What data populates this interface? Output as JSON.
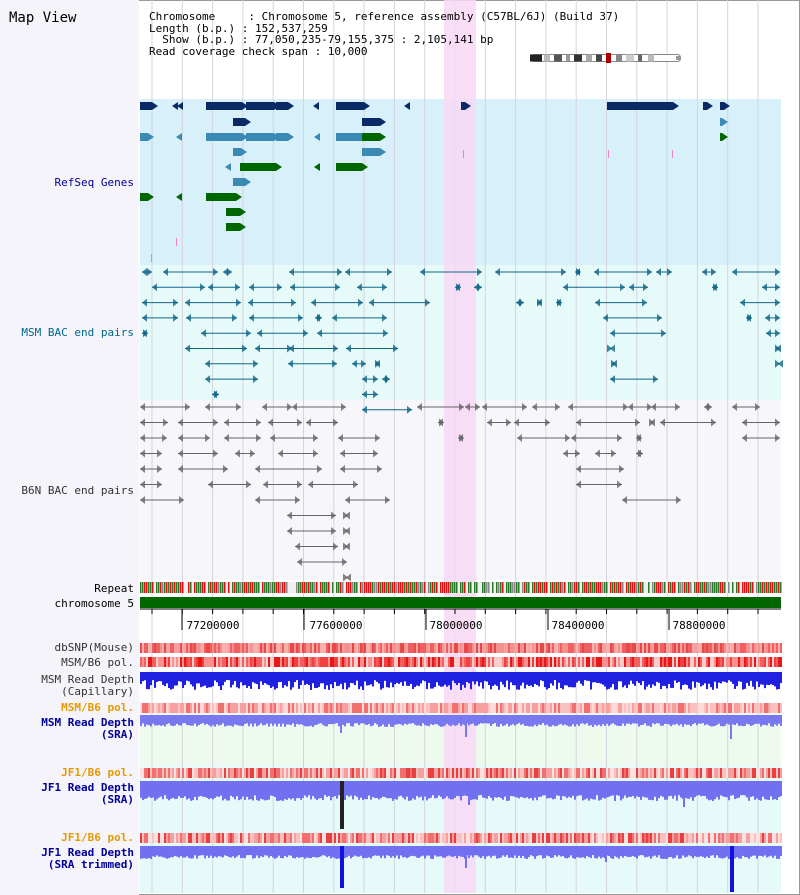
{
  "header": {
    "title": "Map View",
    "lines": [
      "Chromosome     : Chromosome 5, reference assembly (C57BL/6J) (Build 37)",
      "Length (b.p.) : 152,537,259",
      "  Show (b.p.) : 77,050,235-79,155,375 : 2,105,141 bp",
      "Read coverage check span : 10,000"
    ]
  },
  "tracks": {
    "refseq": "RefSeq Genes",
    "msm_bac": "MSM BAC end pairs",
    "b6n_bac": "B6N BAC end pairs",
    "repeat": "Repeat",
    "chromosome": "chromosome 5",
    "dbsnp": "dbSNP(Mouse)",
    "msm_b6_pol_1": "MSM/B6 pol.",
    "msm_depth_cap_1": "MSM Read Depth",
    "msm_depth_cap_2": "(Capillary)",
    "msm_b6_pol_2": "MSM/B6 pol.",
    "msm_depth_sra_1": "MSM Read Depth",
    "msm_depth_sra_2": "(SRA)",
    "jf1_b6_pol_1": "JF1/B6 pol.",
    "jf1_depth_sra_1": "JF1 Read Depth",
    "jf1_depth_sra_2": "(SRA)",
    "jf1_b6_pol_2": "JF1/B6 pol.",
    "jf1_depth_trim_1": "JF1 Read Depth",
    "jf1_depth_trim_2": "(SRA trimmed)"
  },
  "axis": {
    "ticks": [
      "77200000",
      "77600000",
      "78000000",
      "78400000",
      "78800000"
    ]
  },
  "colors": {
    "refseq_bg": "#d8f0fa",
    "bac_bg": "#e6fafa",
    "highlight": "#f8d8f4",
    "dark_blue": "#0a2a66",
    "mid_blue": "#3a8ab4",
    "green": "#006600",
    "msm_line": "#116688",
    "b6n_line": "#555555",
    "label_blue": "#00009a",
    "label_teal": "#006688",
    "label_orange": "#e69a00"
  }
}
